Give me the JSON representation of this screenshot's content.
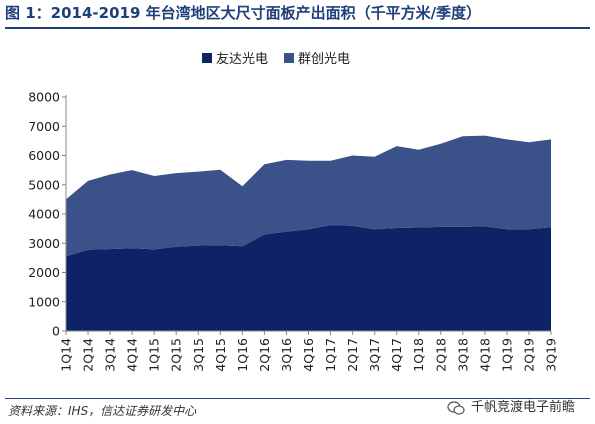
{
  "title": "图 1：2014-2019 年台湾地区大尺寸面板产出面积（千平方米/季度）",
  "source": "资料来源：IHS，信达证券研发中心",
  "watermark": "千帆竞渡电子前瞻",
  "colors": {
    "series1": "#0d2366",
    "series2": "#3a5289",
    "axis": "#888888"
  },
  "chart_data": {
    "type": "area",
    "stacked": true,
    "categories": [
      "1Q14",
      "2Q14",
      "3Q14",
      "4Q14",
      "1Q15",
      "2Q15",
      "3Q15",
      "4Q15",
      "1Q16",
      "2Q16",
      "3Q16",
      "4Q16",
      "1Q17",
      "2Q17",
      "3Q17",
      "4Q17",
      "1Q18",
      "2Q18",
      "3Q18",
      "4Q18",
      "1Q19",
      "2Q19",
      "3Q19"
    ],
    "tick_labels": [
      "1Q14",
      "2Q14",
      "3Q14",
      "4Q14",
      "1Q15",
      "2Q15",
      "3Q15",
      "4Q15",
      "1Q16",
      "2Q16",
      "3Q16",
      "4Q16",
      "1Q17",
      "2Q17",
      "3Q17",
      "4Q17",
      "1Q18",
      "2Q18",
      "3Q18",
      "4Q18",
      "1Q19",
      "2Q19",
      "3Q19"
    ],
    "series": [
      {
        "name": "友达光电",
        "values": [
          2550,
          2780,
          2800,
          2830,
          2790,
          2880,
          2920,
          2930,
          2900,
          3300,
          3400,
          3480,
          3620,
          3600,
          3480,
          3520,
          3540,
          3560,
          3560,
          3580,
          3480,
          3480,
          3550
        ]
      },
      {
        "name": "群创光电",
        "values": [
          1950,
          2350,
          2550,
          2670,
          2510,
          2520,
          2530,
          2580,
          2050,
          2400,
          2450,
          2340,
          2200,
          2400,
          2480,
          2800,
          2660,
          2840,
          3100,
          3100,
          3070,
          2970,
          3000
        ]
      }
    ],
    "ylim": [
      0,
      8000
    ],
    "yticks": [
      0,
      1000,
      2000,
      3000,
      4000,
      5000,
      6000,
      7000,
      8000
    ],
    "legend": "top-center",
    "grid": false
  }
}
